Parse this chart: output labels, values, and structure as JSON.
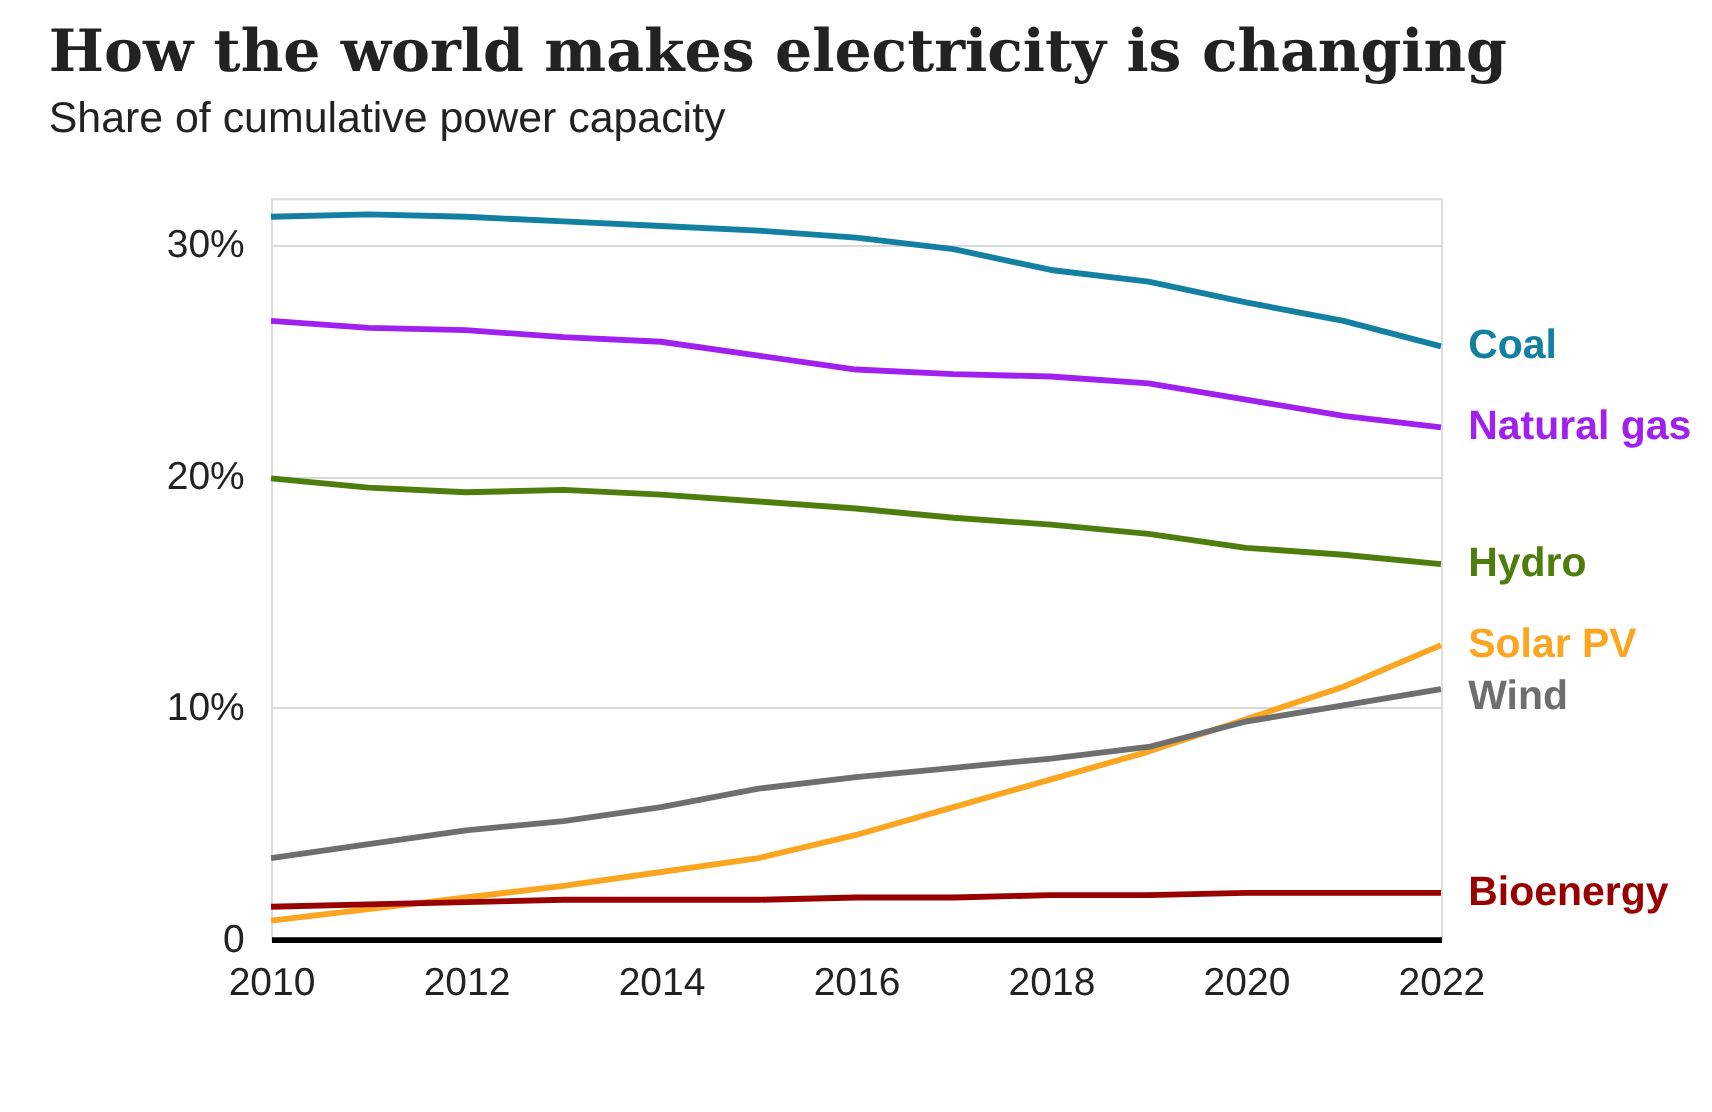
{
  "chart_data": {
    "type": "line",
    "title": "How the world makes electricity is changing",
    "subtitle": "Share of cumulative power capacity",
    "x": [
      2010,
      2011,
      2012,
      2013,
      2014,
      2015,
      2016,
      2017,
      2018,
      2019,
      2020,
      2021,
      2022
    ],
    "series": [
      {
        "name": "Coal",
        "color": "#1380a1",
        "values": [
          31.2,
          31.3,
          31.2,
          31.0,
          30.8,
          30.6,
          30.3,
          29.8,
          28.9,
          28.4,
          27.5,
          26.7,
          25.6
        ]
      },
      {
        "name": "Natural gas",
        "color": "#a020f0",
        "values": [
          26.7,
          26.4,
          26.3,
          26.0,
          25.8,
          25.2,
          24.6,
          24.4,
          24.3,
          24.0,
          23.3,
          22.6,
          22.1
        ]
      },
      {
        "name": "Hydro",
        "color": "#4d7e0d",
        "values": [
          19.9,
          19.5,
          19.3,
          19.4,
          19.2,
          18.9,
          18.6,
          18.2,
          17.9,
          17.5,
          16.9,
          16.6,
          16.2
        ]
      },
      {
        "name": "Solar PV",
        "color": "#fca521",
        "values": [
          0.8,
          1.3,
          1.8,
          2.3,
          2.9,
          3.5,
          4.5,
          5.7,
          6.9,
          8.1,
          9.5,
          10.9,
          12.7
        ]
      },
      {
        "name": "Wind",
        "color": "#6e6e6e",
        "values": [
          3.5,
          4.1,
          4.7,
          5.1,
          5.7,
          6.5,
          7.0,
          7.4,
          7.8,
          8.3,
          9.4,
          10.1,
          10.8
        ]
      },
      {
        "name": "Bioenergy",
        "color": "#990000",
        "values": [
          1.4,
          1.5,
          1.6,
          1.7,
          1.7,
          1.7,
          1.8,
          1.8,
          1.9,
          1.9,
          2.0,
          2.0,
          2.0
        ]
      }
    ],
    "xlim": [
      2010,
      2022
    ],
    "xticks": [
      2010,
      2012,
      2014,
      2016,
      2018,
      2020,
      2022
    ],
    "ylim": [
      0,
      32
    ],
    "yticks": [
      0,
      {
        "value": 10,
        "label": "10%"
      },
      {
        "value": 20,
        "label": "20%"
      },
      {
        "value": 30,
        "label": "30%"
      }
    ],
    "grid": "y",
    "legend": "right",
    "marker": "none",
    "line_style": "solid"
  }
}
